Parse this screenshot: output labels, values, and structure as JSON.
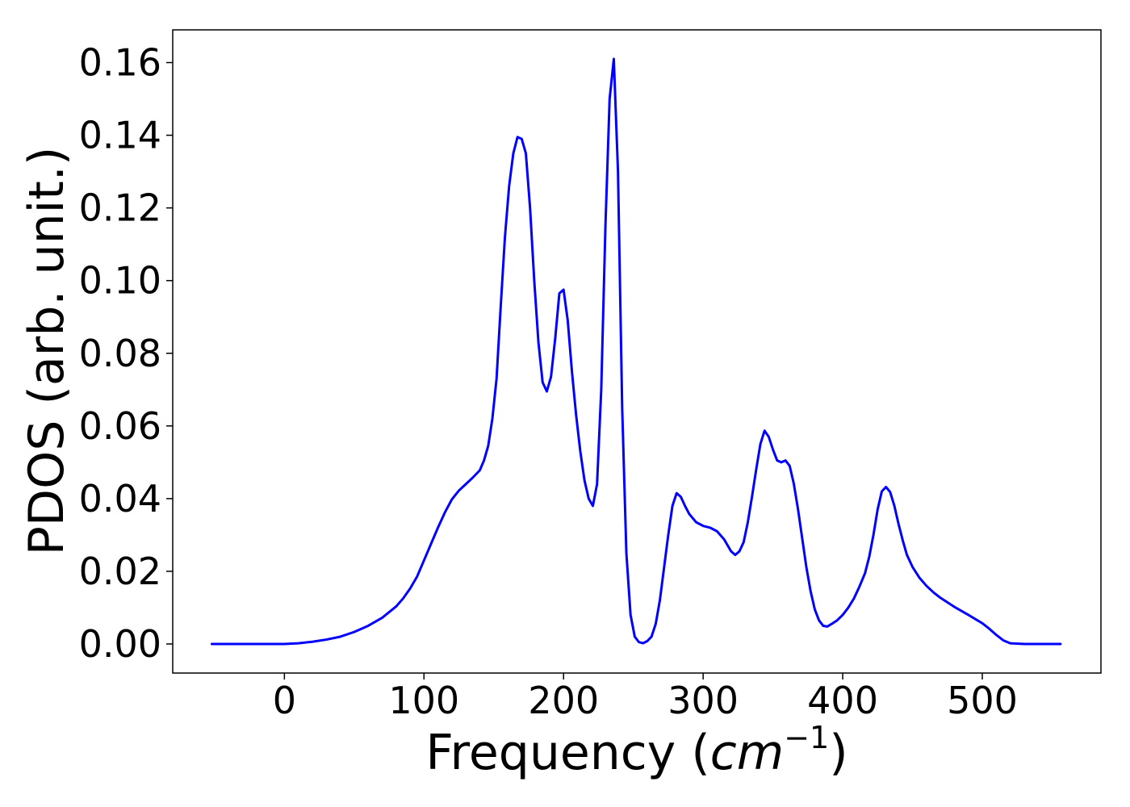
{
  "chart_data": {
    "type": "line",
    "xlabel": "Frequency (cm⁻¹)",
    "xlabel_parts": {
      "prefix": "Frequency (",
      "var": "cm",
      "sup": "−1",
      "suffix": ")"
    },
    "ylabel": "PDOS (arb. unit.)",
    "xlim": [
      -80,
      585
    ],
    "ylim": [
      -0.008,
      0.169
    ],
    "xticks": [
      0,
      100,
      200,
      300,
      400,
      500
    ],
    "xtick_labels": [
      "0",
      "100",
      "200",
      "300",
      "400",
      "500"
    ],
    "yticks": [
      0.0,
      0.02,
      0.04,
      0.06,
      0.08,
      0.1,
      0.12,
      0.14,
      0.16
    ],
    "ytick_labels": [
      "0.00",
      "0.02",
      "0.04",
      "0.06",
      "0.08",
      "0.10",
      "0.12",
      "0.14",
      "0.16"
    ],
    "grid": false,
    "legend": "none",
    "series": [
      {
        "color": "#0000ff",
        "x": [
          -52,
          -20,
          0,
          10,
          20,
          30,
          40,
          50,
          60,
          70,
          80,
          85,
          90,
          95,
          100,
          105,
          110,
          115,
          120,
          125,
          130,
          135,
          140,
          143,
          146,
          149,
          152,
          155,
          158,
          161,
          164,
          167,
          170,
          173,
          176,
          179,
          182,
          185,
          188,
          191,
          194,
          197,
          200,
          203,
          206,
          209,
          212,
          215,
          218,
          221,
          224,
          227,
          230,
          233,
          236,
          239,
          242,
          245,
          248,
          251,
          254,
          257,
          260,
          263,
          266,
          269,
          272,
          275,
          278,
          281,
          284,
          287,
          290,
          295,
          300,
          305,
          310,
          315,
          320,
          323,
          326,
          329,
          332,
          335,
          338,
          341,
          344,
          347,
          350,
          353,
          356,
          359,
          362,
          365,
          368,
          371,
          374,
          377,
          380,
          383,
          386,
          389,
          392,
          396,
          400,
          404,
          408,
          412,
          416,
          419,
          422,
          425,
          428,
          431,
          434,
          437,
          440,
          443,
          446,
          450,
          455,
          460,
          465,
          470,
          480,
          490,
          500,
          505,
          510,
          515,
          520,
          530,
          540,
          556
        ],
        "y": [
          0,
          0,
          0,
          0.0002,
          0.0006,
          0.0012,
          0.002,
          0.0033,
          0.005,
          0.0072,
          0.0103,
          0.0125,
          0.0152,
          0.0185,
          0.023,
          0.0275,
          0.032,
          0.0362,
          0.0398,
          0.0422,
          0.044,
          0.0458,
          0.0478,
          0.0505,
          0.0545,
          0.062,
          0.073,
          0.093,
          0.112,
          0.126,
          0.135,
          0.1395,
          0.139,
          0.135,
          0.12,
          0.1,
          0.083,
          0.072,
          0.0695,
          0.0735,
          0.084,
          0.0965,
          0.0975,
          0.089,
          0.075,
          0.063,
          0.053,
          0.045,
          0.04,
          0.038,
          0.044,
          0.07,
          0.115,
          0.15,
          0.161,
          0.13,
          0.065,
          0.025,
          0.008,
          0.002,
          0.0005,
          0.0002,
          0.0008,
          0.002,
          0.0055,
          0.012,
          0.021,
          0.03,
          0.038,
          0.0415,
          0.0405,
          0.038,
          0.0358,
          0.0335,
          0.0325,
          0.032,
          0.031,
          0.0288,
          0.0255,
          0.0245,
          0.0255,
          0.028,
          0.0335,
          0.0405,
          0.048,
          0.055,
          0.0587,
          0.057,
          0.0535,
          0.0505,
          0.05,
          0.0505,
          0.049,
          0.044,
          0.037,
          0.029,
          0.021,
          0.0145,
          0.0095,
          0.0065,
          0.005,
          0.0048,
          0.0055,
          0.0065,
          0.008,
          0.01,
          0.0125,
          0.0158,
          0.0195,
          0.024,
          0.03,
          0.037,
          0.042,
          0.0432,
          0.0418,
          0.038,
          0.033,
          0.0285,
          0.0245,
          0.0212,
          0.0182,
          0.016,
          0.0142,
          0.0127,
          0.0102,
          0.008,
          0.0057,
          0.0042,
          0.0025,
          0.001,
          0.0002,
          0,
          0,
          0
        ]
      }
    ]
  }
}
